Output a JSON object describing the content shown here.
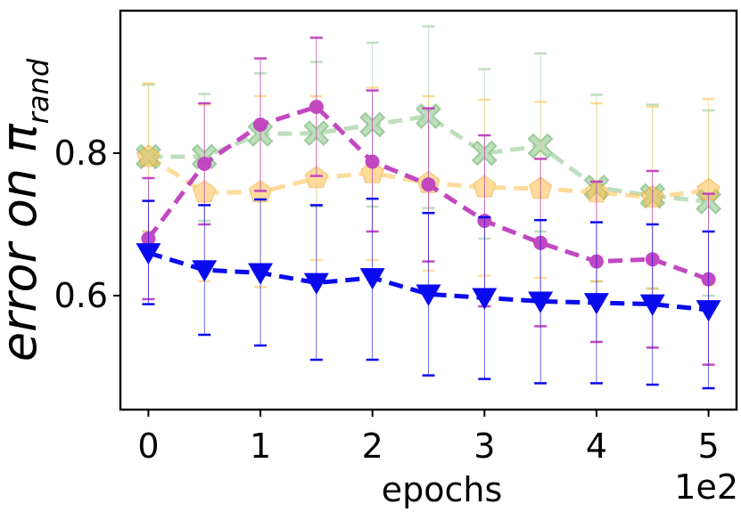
{
  "chart_data": {
    "type": "line",
    "title": "",
    "xlabel": "epochs",
    "ylabel": "error on π",
    "ylabel_subscript": "rand",
    "x_offset_text": "1e2",
    "xlim": [
      -0.25,
      5.25
    ],
    "ylim": [
      0.44,
      1.0
    ],
    "x_ticks": [
      0,
      1,
      2,
      3,
      4,
      5
    ],
    "x_tick_labels": [
      "0",
      "1",
      "2",
      "3",
      "4",
      "5"
    ],
    "y_ticks": [
      0.6,
      0.8
    ],
    "y_tick_labels": [
      "0.6",
      "0.8"
    ],
    "grid": false,
    "legend": "none",
    "x": [
      0,
      0.5,
      1,
      1.5,
      2,
      2.5,
      3,
      3.5,
      4,
      4.5,
      5
    ],
    "series": [
      {
        "marker": "x",
        "color": "#7fbf7f",
        "values": [
          0.795,
          0.795,
          0.827,
          0.828,
          0.84,
          0.852,
          0.8,
          0.81,
          0.752,
          0.74,
          0.732
        ],
        "err_upper": [
          0.896,
          0.883,
          0.912,
          0.928,
          0.955,
          0.978,
          0.918,
          0.94,
          0.882,
          0.868,
          0.86
        ],
        "err_lower": [
          0.69,
          0.705,
          0.735,
          0.725,
          0.725,
          0.723,
          0.68,
          0.69,
          0.62,
          0.61,
          0.6
        ]
      },
      {
        "marker": "pentagon",
        "color": "#ffc04d",
        "values": [
          0.795,
          0.745,
          0.745,
          0.765,
          0.772,
          0.758,
          0.752,
          0.75,
          0.745,
          0.738,
          0.748
        ],
        "err_upper": [
          0.898,
          0.868,
          0.88,
          0.88,
          0.892,
          0.88,
          0.875,
          0.872,
          0.87,
          0.865,
          0.876
        ],
        "err_lower": [
          0.69,
          0.62,
          0.612,
          0.65,
          0.65,
          0.635,
          0.628,
          0.625,
          0.62,
          0.61,
          0.615
        ]
      },
      {
        "marker": "circle",
        "color": "#bf3fbf",
        "values": [
          0.68,
          0.785,
          0.84,
          0.865,
          0.788,
          0.756,
          0.705,
          0.674,
          0.648,
          0.651,
          0.623
        ],
        "err_upper": [
          0.765,
          0.87,
          0.933,
          0.962,
          0.888,
          0.863,
          0.825,
          0.792,
          0.76,
          0.775,
          0.743
        ],
        "err_lower": [
          0.595,
          0.7,
          0.747,
          0.768,
          0.69,
          0.648,
          0.585,
          0.557,
          0.535,
          0.527,
          0.503
        ]
      },
      {
        "marker": "triangle-down",
        "color": "#0a0aee",
        "values": [
          0.66,
          0.636,
          0.632,
          0.618,
          0.625,
          0.602,
          0.597,
          0.592,
          0.59,
          0.588,
          0.58
        ],
        "err_upper": [
          0.733,
          0.727,
          0.735,
          0.727,
          0.736,
          0.716,
          0.71,
          0.706,
          0.703,
          0.7,
          0.69
        ],
        "err_lower": [
          0.588,
          0.545,
          0.53,
          0.51,
          0.51,
          0.488,
          0.483,
          0.477,
          0.477,
          0.475,
          0.47
        ]
      }
    ]
  }
}
